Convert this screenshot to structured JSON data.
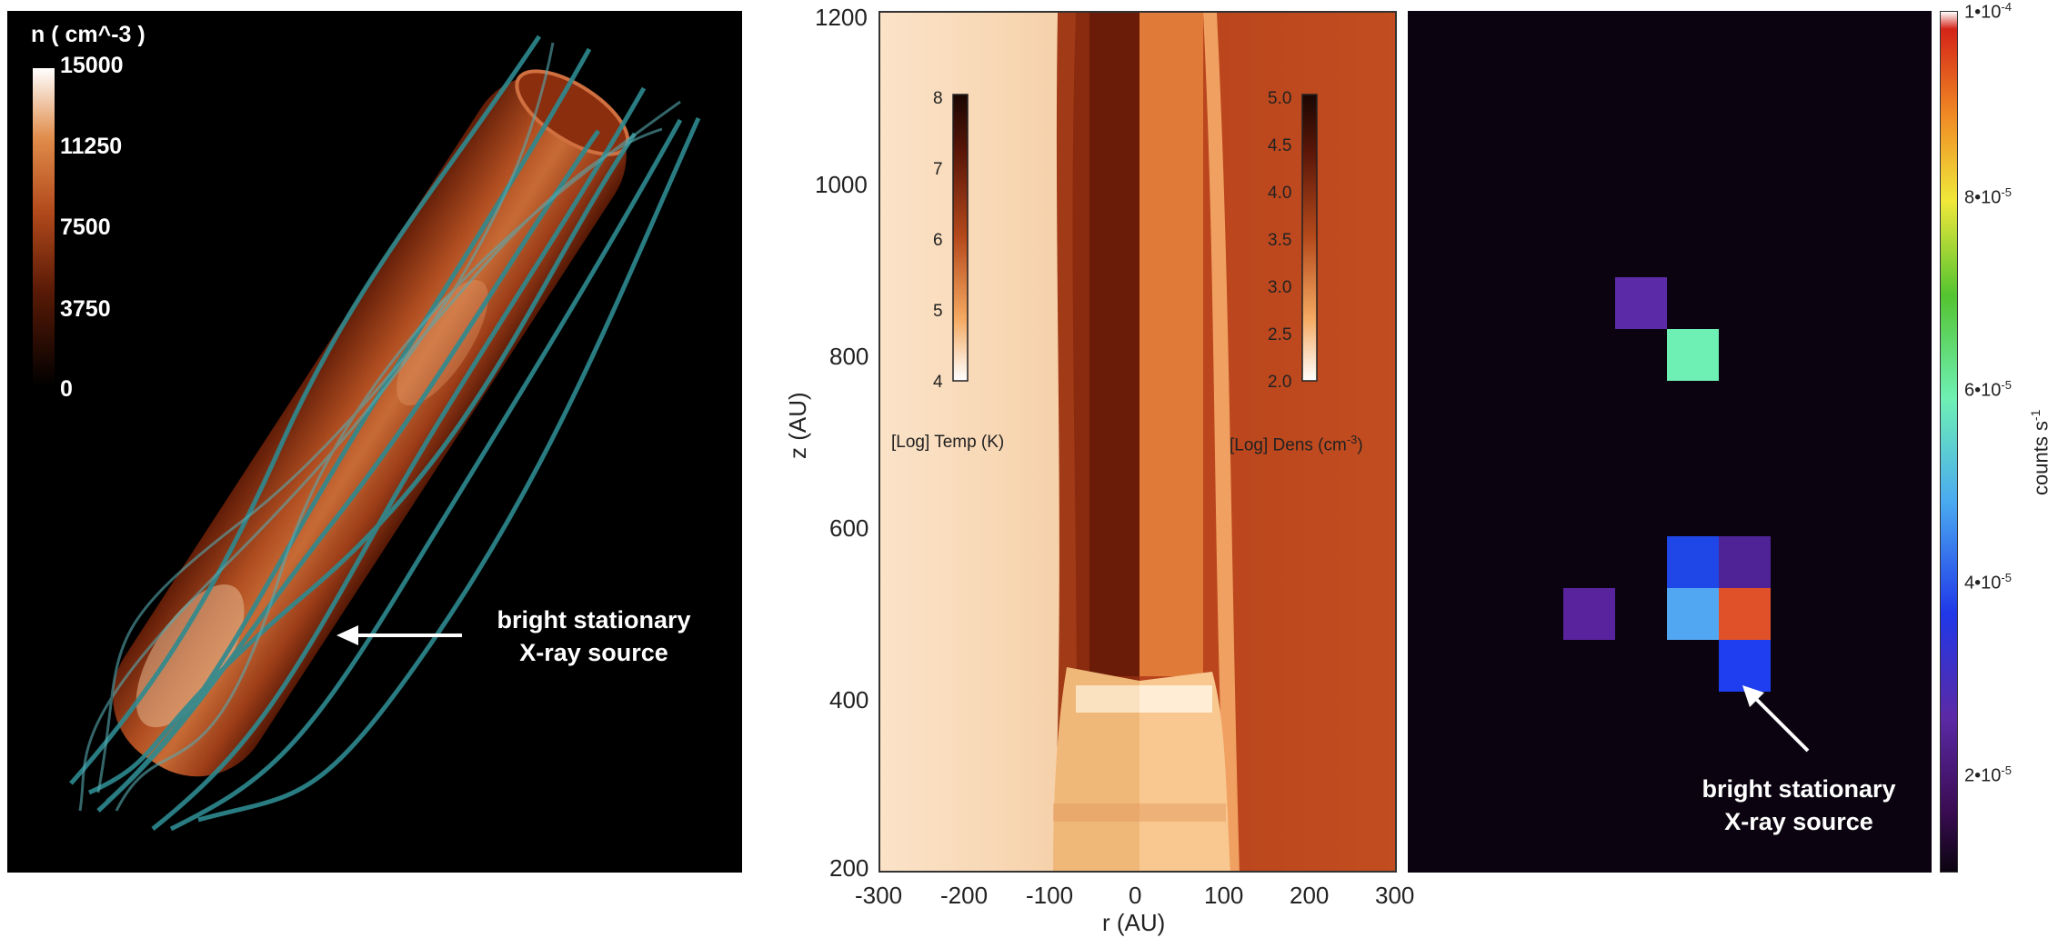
{
  "panel_left": {
    "colorbar": {
      "title": "n ( cm^-3 )",
      "ticks": [
        "15000",
        "11250",
        "7500",
        "3750",
        "0"
      ]
    },
    "annotation": [
      "bright stationary",
      "X-ray source"
    ]
  },
  "panel_middle": {
    "y_axis": {
      "label": "z (AU)",
      "ticks": [
        "1200",
        "1000",
        "800",
        "600",
        "400",
        "200"
      ]
    },
    "x_axis": {
      "label": "r (AU)",
      "ticks": [
        "-300",
        "-200",
        "-100",
        "0",
        "100",
        "200",
        "300"
      ]
    },
    "temp_bar": {
      "label": "[Log] Temp (K)",
      "ticks": [
        "8",
        "7",
        "6",
        "5",
        "4"
      ]
    },
    "dens_bar": {
      "label": "[Log] Dens (cm",
      "sup": "-3",
      "close": ")",
      "ticks": [
        "5.0",
        "4.5",
        "4.0",
        "3.5",
        "3.0",
        "2.5",
        "2.0"
      ]
    }
  },
  "panel_right": {
    "annotation": [
      "bright stationary",
      "X-ray source"
    ],
    "colorbar": {
      "label": "counts s",
      "label_sup": "-1",
      "ticks": [
        "1•10",
        "8•10",
        "6•10",
        "4•10",
        "2•10"
      ],
      "tick_sups": [
        "-4",
        "-5",
        "-5",
        "-5",
        "-5"
      ]
    },
    "pixels": [
      {
        "col": 0,
        "row": 0,
        "color": "#5b2aa6"
      },
      {
        "col": 1,
        "row": 1,
        "color": "#6ef0b4"
      },
      {
        "col": 1,
        "row": 5,
        "color": "#1f47e8"
      },
      {
        "col": 2,
        "row": 5,
        "color": "#4f2396"
      },
      {
        "col": 0,
        "row": 6,
        "color": "#58239c"
      },
      {
        "col": 1,
        "row": 6,
        "color": "#52a7f2"
      },
      {
        "col": 2,
        "row": 6,
        "color": "#e0512a"
      },
      {
        "col": 2,
        "row": 7,
        "color": "#1e3ef0"
      }
    ]
  }
}
